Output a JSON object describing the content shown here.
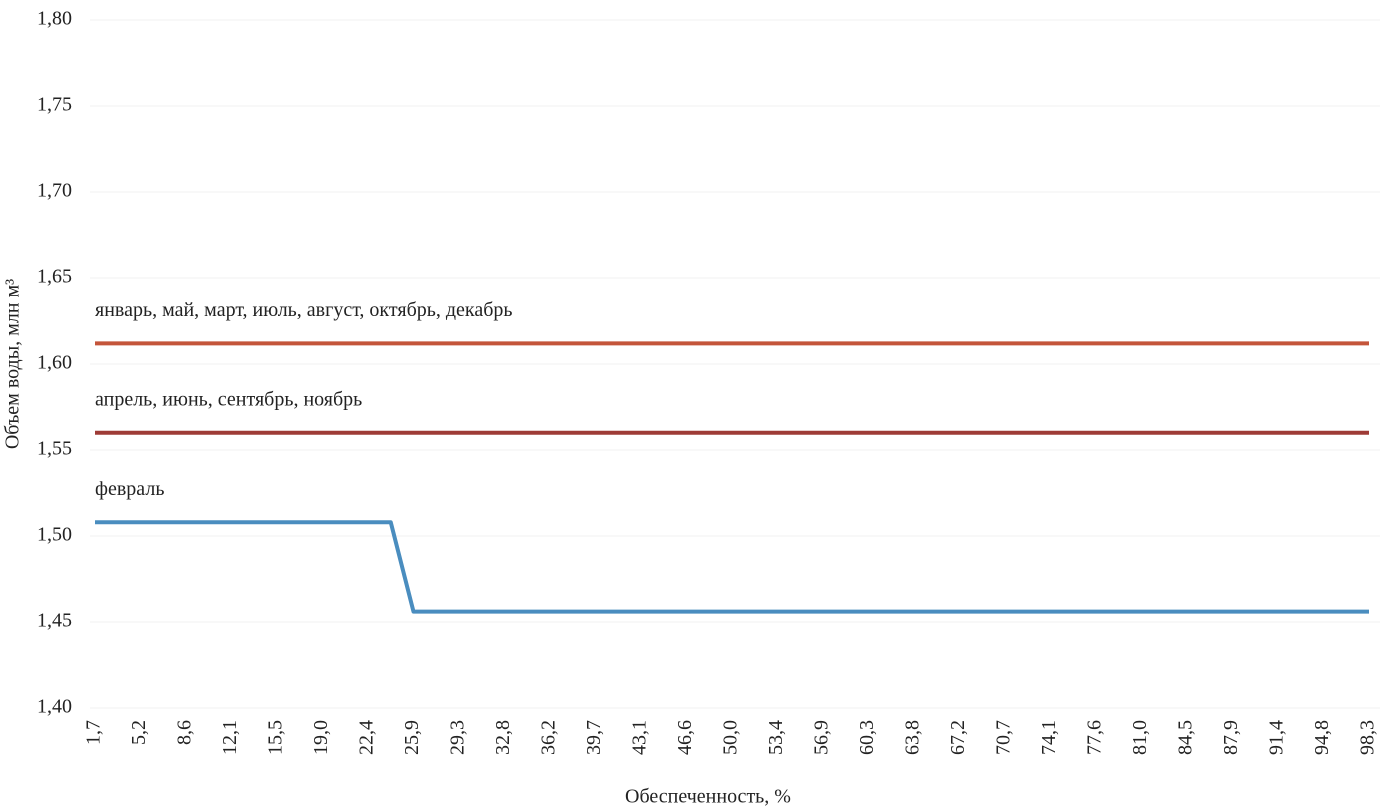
{
  "chart_data": {
    "type": "line",
    "x_label": "Обеспеченность, %",
    "y_label": "Объем воды, млн м³",
    "categories": [
      "1,7",
      null,
      "5,2",
      null,
      "8,6",
      null,
      "12,1",
      null,
      "15,5",
      null,
      "19,0",
      null,
      "22,4",
      null,
      "25,9",
      null,
      "29,3",
      null,
      "32,8",
      null,
      "36,2",
      null,
      "39,7",
      null,
      "43,1",
      null,
      "46,6",
      null,
      "50,0",
      null,
      "53,4",
      null,
      "56,9",
      null,
      "60,3",
      null,
      "63,8",
      null,
      "67,2",
      null,
      "70,7",
      null,
      "74,1",
      null,
      "77,6",
      null,
      "81,0",
      null,
      "84,5",
      null,
      "87,9",
      null,
      "91,4",
      null,
      "94,8",
      null,
      "98,3"
    ],
    "series": [
      {
        "name": "январь, май, март, июль, август, октябрь, декабрь",
        "color": "#c4553a",
        "values": [
          1.612,
          1.612,
          1.612,
          1.612,
          1.612,
          1.612,
          1.612,
          1.612,
          1.612,
          1.612,
          1.612,
          1.612,
          1.612,
          1.612,
          1.612,
          1.612,
          1.612,
          1.612,
          1.612,
          1.612,
          1.612,
          1.612,
          1.612,
          1.612,
          1.612,
          1.612,
          1.612,
          1.612,
          1.612,
          1.612,
          1.612,
          1.612,
          1.612,
          1.612,
          1.612,
          1.612,
          1.612,
          1.612,
          1.612,
          1.612,
          1.612,
          1.612,
          1.612,
          1.612,
          1.612,
          1.612,
          1.612,
          1.612,
          1.612,
          1.612,
          1.612,
          1.612,
          1.612,
          1.612,
          1.612,
          1.612,
          1.612
        ]
      },
      {
        "name": "апрель, июнь, сентябрь, ноябрь",
        "color": "#9e3b36",
        "values": [
          1.56,
          1.56,
          1.56,
          1.56,
          1.56,
          1.56,
          1.56,
          1.56,
          1.56,
          1.56,
          1.56,
          1.56,
          1.56,
          1.56,
          1.56,
          1.56,
          1.56,
          1.56,
          1.56,
          1.56,
          1.56,
          1.56,
          1.56,
          1.56,
          1.56,
          1.56,
          1.56,
          1.56,
          1.56,
          1.56,
          1.56,
          1.56,
          1.56,
          1.56,
          1.56,
          1.56,
          1.56,
          1.56,
          1.56,
          1.56,
          1.56,
          1.56,
          1.56,
          1.56,
          1.56,
          1.56,
          1.56,
          1.56,
          1.56,
          1.56,
          1.56,
          1.56,
          1.56,
          1.56,
          1.56,
          1.56,
          1.56
        ]
      },
      {
        "name": "февраль",
        "color": "#4a8dbf",
        "values": [
          1.508,
          1.508,
          1.508,
          1.508,
          1.508,
          1.508,
          1.508,
          1.508,
          1.508,
          1.508,
          1.508,
          1.508,
          1.508,
          1.508,
          1.456,
          1.456,
          1.456,
          1.456,
          1.456,
          1.456,
          1.456,
          1.456,
          1.456,
          1.456,
          1.456,
          1.456,
          1.456,
          1.456,
          1.456,
          1.456,
          1.456,
          1.456,
          1.456,
          1.456,
          1.456,
          1.456,
          1.456,
          1.456,
          1.456,
          1.456,
          1.456,
          1.456,
          1.456,
          1.456,
          1.456,
          1.456,
          1.456,
          1.456,
          1.456,
          1.456,
          1.456,
          1.456,
          1.456,
          1.456,
          1.456,
          1.456,
          1.456
        ]
      }
    ],
    "ylim": [
      1.4,
      1.8
    ],
    "yticks": [
      {
        "value": 1.4,
        "label": "1,40"
      },
      {
        "value": 1.45,
        "label": "1,45"
      },
      {
        "value": 1.5,
        "label": "1,50"
      },
      {
        "value": 1.55,
        "label": "1,55"
      },
      {
        "value": 1.6,
        "label": "1,60"
      },
      {
        "value": 1.65,
        "label": "1,65"
      },
      {
        "value": 1.7,
        "label": "1,70"
      },
      {
        "value": 1.75,
        "label": "1,75"
      },
      {
        "value": 1.8,
        "label": "1,80"
      }
    ],
    "grid": true
  }
}
